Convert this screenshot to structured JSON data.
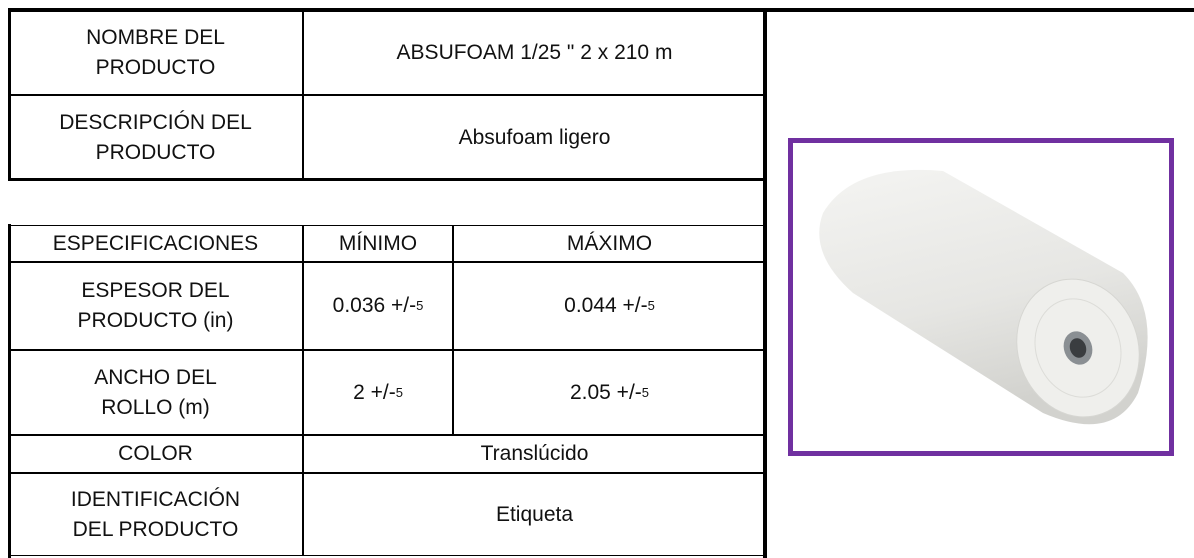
{
  "product": {
    "rows": [
      {
        "label": "NOMBRE DEL\nPRODUCTO",
        "value": "ABSUFOAM 1/25 \" 2 x 210 m"
      },
      {
        "label": "DESCRIPCIÓN  DEL\nPRODUCTO",
        "value": "Absufoam ligero"
      }
    ]
  },
  "specifications": {
    "header": [
      "ESPECIFICACIONES",
      "MÍNIMO",
      "MÁXIMO"
    ],
    "rows": [
      {
        "label": "ESPESOR DEL\nPRODUCTO (in)",
        "min": {
          "main": "0.036 +/-",
          "sub": "5"
        },
        "max": {
          "main": "0.044 +/-",
          "sub": "5"
        }
      },
      {
        "label": "ANCHO DEL\nROLLO (m)",
        "min": {
          "main": "2 +/-",
          "sub": "5"
        },
        "max": {
          "main": "2.05 +/-",
          "sub": "5"
        }
      },
      {
        "label": "COLOR",
        "value": "Translúcido"
      },
      {
        "label": "IDENTIFICACIÓN\nDEL PRODUCTO",
        "value": "Etiqueta"
      }
    ]
  }
}
